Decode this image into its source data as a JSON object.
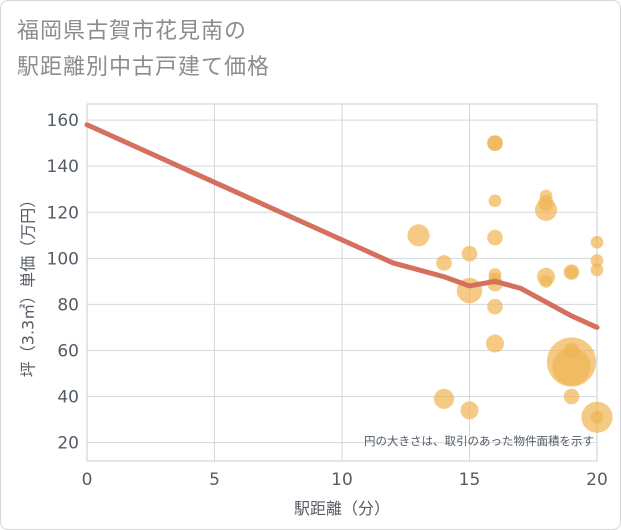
{
  "title": {
    "line1": "福岡県古賀市花見南の",
    "line2": "駅距離別中古戸建て価格"
  },
  "chart_data": {
    "type": "scatter",
    "title": "福岡県古賀市花見南の駅距離別中古戸建て価格",
    "xlabel": "駅距離（分）",
    "ylabel": "坪（3.3㎡）単価（万円）",
    "xlim": [
      0,
      20
    ],
    "ylim": [
      12,
      167
    ],
    "xticks": [
      0,
      5,
      10,
      15,
      20
    ],
    "yticks": [
      20,
      40,
      60,
      80,
      100,
      120,
      140,
      160
    ],
    "grid": true,
    "note": "円の大きさは、取引のあった物件面積を示す",
    "colors": {
      "bubble": "#f0b555",
      "trend": "#d4705d"
    },
    "trend_line": {
      "x": [
        0,
        1,
        2,
        3,
        4,
        5,
        6,
        7,
        8,
        9,
        10,
        11,
        12,
        13,
        14,
        15,
        16,
        17,
        18,
        19,
        20
      ],
      "y": [
        158,
        153,
        148,
        143,
        138,
        133,
        128,
        123,
        118,
        113,
        108,
        103,
        98,
        95,
        92,
        88,
        90,
        87,
        81,
        75,
        70
      ]
    },
    "points": [
      {
        "x": 16,
        "y": 150,
        "size": 3
      },
      {
        "x": 16,
        "y": 150,
        "size": 3
      },
      {
        "x": 16,
        "y": 125,
        "size": 2
      },
      {
        "x": 18,
        "y": 127,
        "size": 2
      },
      {
        "x": 18,
        "y": 124,
        "size": 3
      },
      {
        "x": 18,
        "y": 121,
        "size": 6
      },
      {
        "x": 13,
        "y": 110,
        "size": 6
      },
      {
        "x": 16,
        "y": 109,
        "size": 3
      },
      {
        "x": 15,
        "y": 102,
        "size": 3
      },
      {
        "x": 20,
        "y": 107,
        "size": 2
      },
      {
        "x": 14,
        "y": 98,
        "size": 3
      },
      {
        "x": 20,
        "y": 99,
        "size": 2
      },
      {
        "x": 20,
        "y": 95,
        "size": 2
      },
      {
        "x": 16,
        "y": 93,
        "size": 2
      },
      {
        "x": 16,
        "y": 91,
        "size": 2
      },
      {
        "x": 19,
        "y": 94,
        "size": 3
      },
      {
        "x": 19,
        "y": 94,
        "size": 2
      },
      {
        "x": 18,
        "y": 92,
        "size": 4
      },
      {
        "x": 18,
        "y": 90,
        "size": 2
      },
      {
        "x": 16,
        "y": 89,
        "size": 3
      },
      {
        "x": 15,
        "y": 86,
        "size": 8
      },
      {
        "x": 16,
        "y": 79,
        "size": 3
      },
      {
        "x": 16,
        "y": 63,
        "size": 4
      },
      {
        "x": 19,
        "y": 60,
        "size": 3
      },
      {
        "x": 19,
        "y": 55,
        "size": 30
      },
      {
        "x": 19,
        "y": 53,
        "size": 18
      },
      {
        "x": 19,
        "y": 40,
        "size": 3
      },
      {
        "x": 14,
        "y": 39,
        "size": 5
      },
      {
        "x": 15,
        "y": 34,
        "size": 4
      },
      {
        "x": 20,
        "y": 31,
        "size": 12
      },
      {
        "x": 20,
        "y": 31,
        "size": 2
      }
    ]
  }
}
